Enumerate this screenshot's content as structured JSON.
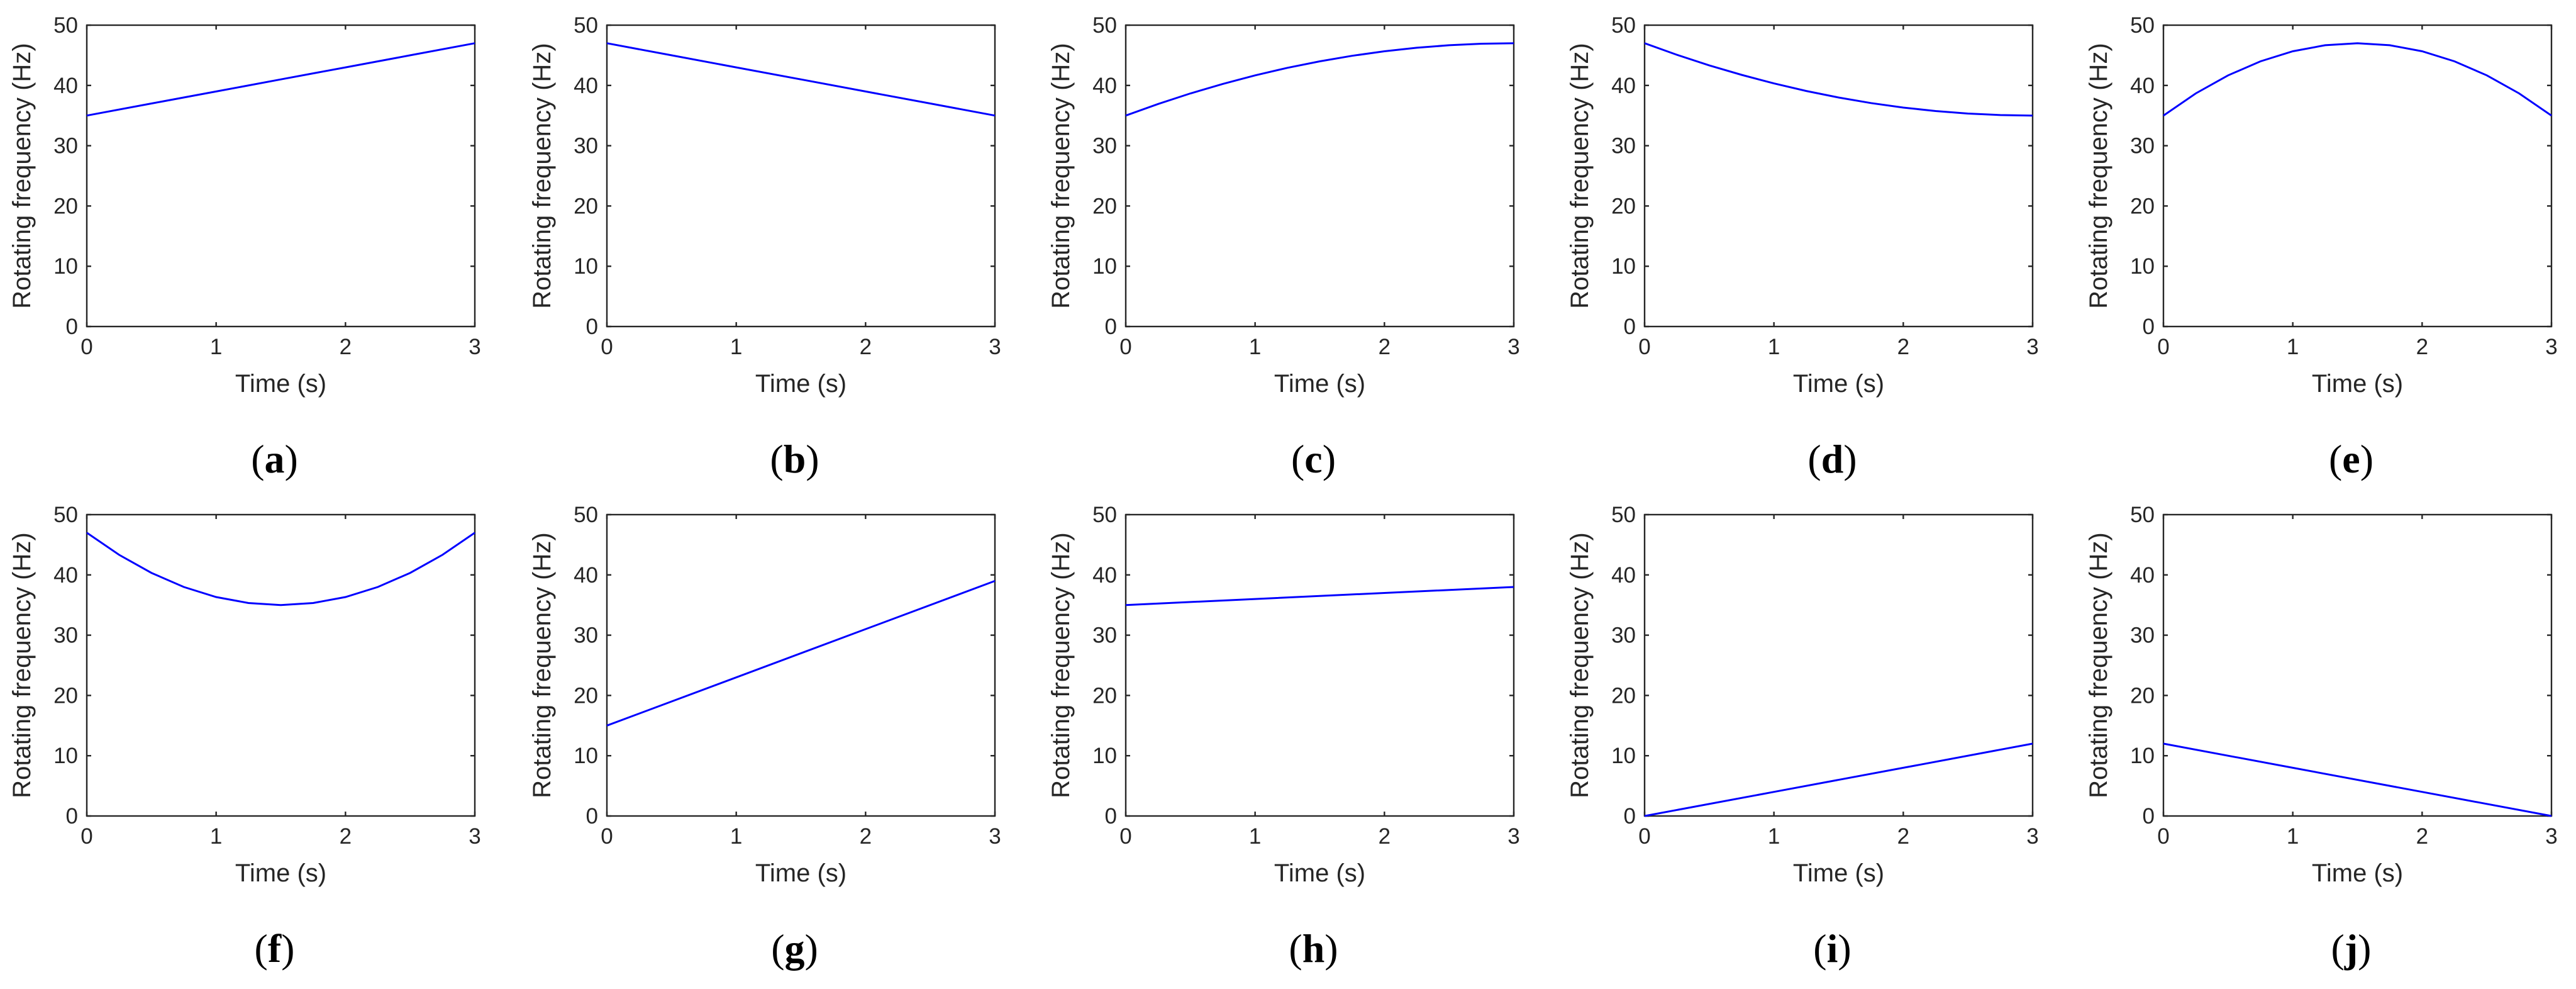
{
  "figure": {
    "line_color": "#0000ff"
  },
  "chart_data": [
    {
      "type": "line",
      "panel": "(a)",
      "letter": "a",
      "xlabel": "Time (s)",
      "ylabel": "Rotating frequency (Hz)",
      "xlim": [
        0,
        3
      ],
      "ylim": [
        0,
        50
      ],
      "xticks": [
        "0",
        "1",
        "2",
        "3"
      ],
      "yticks": [
        "0",
        "10",
        "20",
        "30",
        "40",
        "50"
      ],
      "grid": false,
      "series": [
        {
          "name": "rotating frequency",
          "x": [
            0,
            0.5,
            1,
            1.5,
            2,
            2.5,
            3
          ],
          "y": [
            35,
            37,
            39,
            41,
            43,
            45,
            47
          ]
        }
      ]
    },
    {
      "type": "line",
      "panel": "(b)",
      "letter": "b",
      "xlabel": "Time (s)",
      "ylabel": "Rotating frequency (Hz)",
      "xlim": [
        0,
        3
      ],
      "ylim": [
        0,
        50
      ],
      "xticks": [
        "0",
        "1",
        "2",
        "3"
      ],
      "yticks": [
        "0",
        "10",
        "20",
        "30",
        "40",
        "50"
      ],
      "grid": false,
      "series": [
        {
          "name": "rotating frequency",
          "x": [
            0,
            0.5,
            1,
            1.5,
            2,
            2.5,
            3
          ],
          "y": [
            47,
            45,
            43,
            41,
            39,
            37,
            35
          ]
        }
      ]
    },
    {
      "type": "line",
      "panel": "(c)",
      "letter": "c",
      "xlabel": "Time (s)",
      "ylabel": "Rotating frequency (Hz)",
      "xlim": [
        0,
        3
      ],
      "ylim": [
        0,
        50
      ],
      "xticks": [
        "0",
        "1",
        "2",
        "3"
      ],
      "yticks": [
        "0",
        "10",
        "20",
        "30",
        "40",
        "50"
      ],
      "grid": false,
      "series": [
        {
          "name": "rotating frequency",
          "x": [
            0,
            0.25,
            0.5,
            0.75,
            1,
            1.25,
            1.5,
            1.75,
            2,
            2.25,
            2.5,
            2.75,
            3
          ],
          "y": [
            35,
            36.92,
            38.67,
            40.25,
            41.67,
            42.92,
            44,
            44.92,
            45.67,
            46.25,
            46.67,
            46.92,
            47
          ]
        }
      ]
    },
    {
      "type": "line",
      "panel": "(d)",
      "letter": "d",
      "xlabel": "Time (s)",
      "ylabel": "Rotating frequency (Hz)",
      "xlim": [
        0,
        3
      ],
      "ylim": [
        0,
        50
      ],
      "xticks": [
        "0",
        "1",
        "2",
        "3"
      ],
      "yticks": [
        "0",
        "10",
        "20",
        "30",
        "40",
        "50"
      ],
      "grid": false,
      "series": [
        {
          "name": "rotating frequency",
          "x": [
            0,
            0.25,
            0.5,
            0.75,
            1,
            1.25,
            1.5,
            1.75,
            2,
            2.25,
            2.5,
            2.75,
            3
          ],
          "y": [
            47,
            45.08,
            43.33,
            41.75,
            40.33,
            39.08,
            38,
            37.08,
            36.33,
            35.75,
            35.33,
            35.08,
            35
          ]
        }
      ]
    },
    {
      "type": "line",
      "panel": "(e)",
      "letter": "e",
      "xlabel": "Time (s)",
      "ylabel": "Rotating frequency (Hz)",
      "xlim": [
        0,
        3
      ],
      "ylim": [
        0,
        50
      ],
      "xticks": [
        "0",
        "1",
        "2",
        "3"
      ],
      "yticks": [
        "0",
        "10",
        "20",
        "30",
        "40",
        "50"
      ],
      "grid": false,
      "series": [
        {
          "name": "rotating frequency",
          "x": [
            0,
            0.25,
            0.5,
            0.75,
            1,
            1.25,
            1.5,
            1.75,
            2,
            2.25,
            2.5,
            2.75,
            3
          ],
          "y": [
            35,
            38.67,
            41.67,
            44,
            45.67,
            46.67,
            47,
            46.67,
            45.67,
            44,
            41.67,
            38.67,
            35
          ]
        }
      ]
    },
    {
      "type": "line",
      "panel": "(f)",
      "letter": "f",
      "xlabel": "Time (s)",
      "ylabel": "Rotating frequency (Hz)",
      "xlim": [
        0,
        3
      ],
      "ylim": [
        0,
        50
      ],
      "xticks": [
        "0",
        "1",
        "2",
        "3"
      ],
      "yticks": [
        "0",
        "10",
        "20",
        "30",
        "40",
        "50"
      ],
      "grid": false,
      "series": [
        {
          "name": "rotating frequency",
          "x": [
            0,
            0.25,
            0.5,
            0.75,
            1,
            1.25,
            1.5,
            1.75,
            2,
            2.25,
            2.5,
            2.75,
            3
          ],
          "y": [
            47,
            43.33,
            40.33,
            38,
            36.33,
            35.33,
            35,
            35.33,
            36.33,
            38,
            40.33,
            43.33,
            47
          ]
        }
      ]
    },
    {
      "type": "line",
      "panel": "(g)",
      "letter": "g",
      "xlabel": "Time (s)",
      "ylabel": "Rotating frequency (Hz)",
      "xlim": [
        0,
        3
      ],
      "ylim": [
        0,
        50
      ],
      "xticks": [
        "0",
        "1",
        "2",
        "3"
      ],
      "yticks": [
        "0",
        "10",
        "20",
        "30",
        "40",
        "50"
      ],
      "grid": false,
      "series": [
        {
          "name": "rotating frequency",
          "x": [
            0,
            1,
            2,
            3
          ],
          "y": [
            15,
            23,
            31,
            39
          ]
        }
      ]
    },
    {
      "type": "line",
      "panel": "(h)",
      "letter": "h",
      "xlabel": "Time (s)",
      "ylabel": "Rotating frequency (Hz)",
      "xlim": [
        0,
        3
      ],
      "ylim": [
        0,
        50
      ],
      "xticks": [
        "0",
        "1",
        "2",
        "3"
      ],
      "yticks": [
        "0",
        "10",
        "20",
        "30",
        "40",
        "50"
      ],
      "grid": false,
      "series": [
        {
          "name": "rotating frequency",
          "x": [
            0,
            1,
            2,
            3
          ],
          "y": [
            35,
            36,
            37,
            38
          ]
        }
      ]
    },
    {
      "type": "line",
      "panel": "(i)",
      "letter": "i",
      "xlabel": "Time (s)",
      "ylabel": "Rotating frequency (Hz)",
      "xlim": [
        0,
        3
      ],
      "ylim": [
        0,
        50
      ],
      "xticks": [
        "0",
        "1",
        "2",
        "3"
      ],
      "yticks": [
        "0",
        "10",
        "20",
        "30",
        "40",
        "50"
      ],
      "grid": false,
      "series": [
        {
          "name": "rotating frequency",
          "x": [
            0,
            1,
            2,
            3
          ],
          "y": [
            0,
            4,
            8,
            12
          ]
        }
      ]
    },
    {
      "type": "line",
      "panel": "(j)",
      "letter": "j",
      "xlabel": "Time (s)",
      "ylabel": "Rotating frequency (Hz)",
      "xlim": [
        0,
        3
      ],
      "ylim": [
        0,
        50
      ],
      "xticks": [
        "0",
        "1",
        "2",
        "3"
      ],
      "yticks": [
        "0",
        "10",
        "20",
        "30",
        "40",
        "50"
      ],
      "grid": false,
      "series": [
        {
          "name": "rotating frequency",
          "x": [
            0,
            1,
            2,
            3
          ],
          "y": [
            12,
            8,
            4,
            0
          ]
        }
      ]
    }
  ]
}
